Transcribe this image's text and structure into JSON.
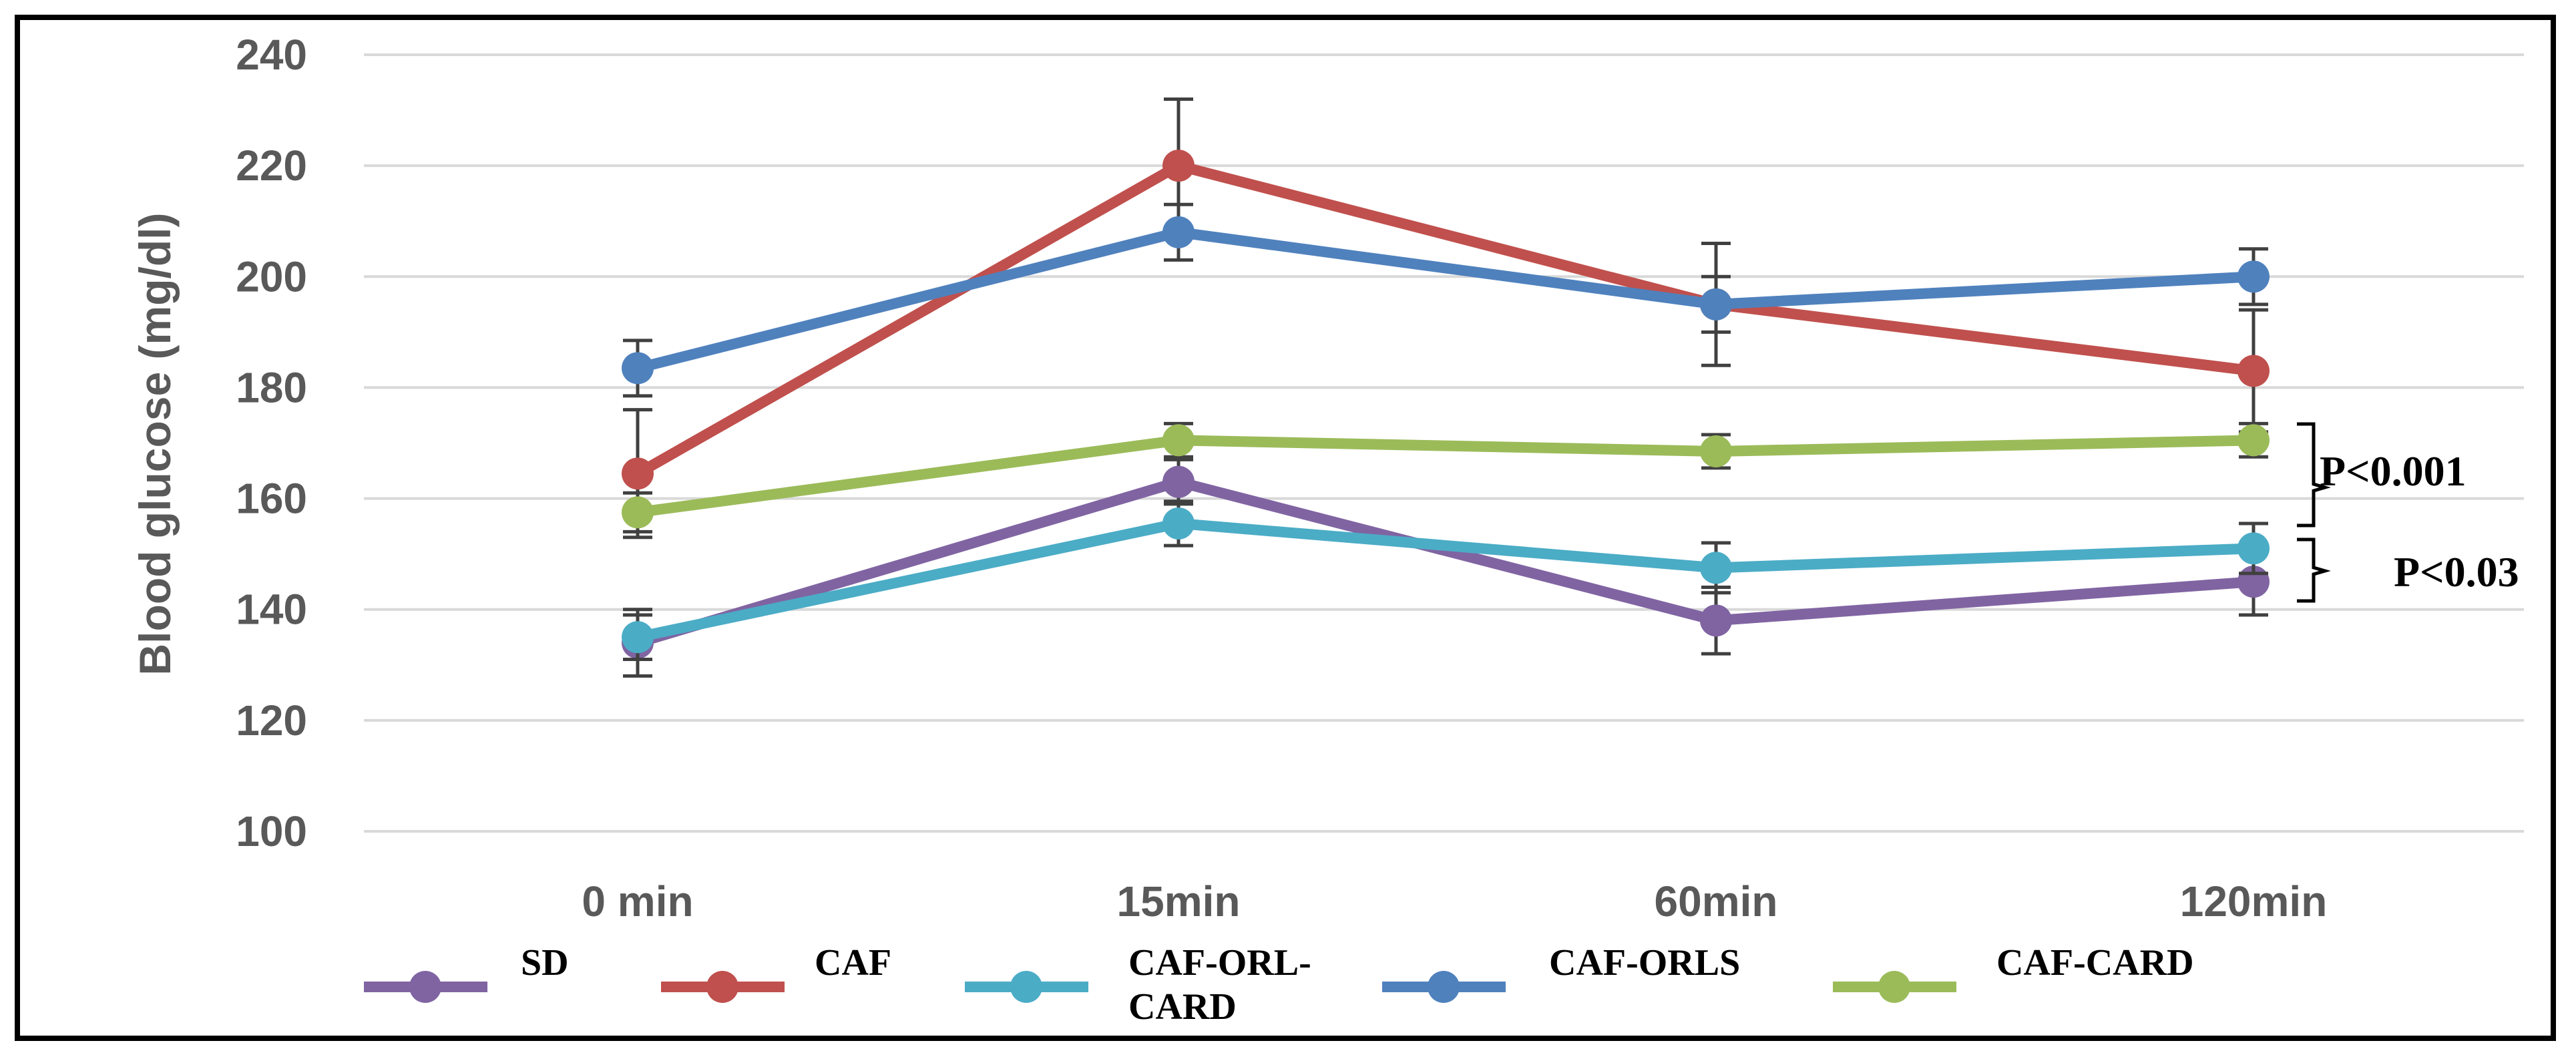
{
  "chart_data": {
    "type": "line",
    "ylabel": "Blood glucose (mg/dl)",
    "xlabel": "",
    "ylim": [
      100,
      240
    ],
    "yticks": [
      100,
      120,
      140,
      160,
      180,
      200,
      220,
      240
    ],
    "grid": true,
    "legend": "bottom",
    "categories": [
      "0 min",
      "15min",
      "60min",
      "120min"
    ],
    "series": [
      {
        "name": "SD",
        "color": "#8064A2",
        "values": [
          134,
          163,
          138,
          145
        ],
        "errors": [
          6,
          4,
          6,
          6
        ]
      },
      {
        "name": "CAF",
        "color": "#C0504D",
        "values": [
          164.5,
          220,
          195,
          183
        ],
        "errors": [
          11.5,
          12,
          11,
          11
        ]
      },
      {
        "name": "CAF-ORL-CARD",
        "color": "#4BACC6",
        "values": [
          135,
          155.5,
          147.5,
          151
        ],
        "errors": [
          4,
          4,
          4.5,
          4.5
        ]
      },
      {
        "name": "CAF-ORLS",
        "color": "#4F81BD",
        "values": [
          183.5,
          208,
          195,
          200
        ],
        "errors": [
          5,
          5,
          5,
          5
        ]
      },
      {
        "name": "CAF-CARD",
        "color": "#9BBB59",
        "values": [
          157.5,
          170.5,
          168.5,
          170.5
        ],
        "errors": [
          3.5,
          3,
          3,
          3
        ]
      }
    ],
    "annotations": [
      "P<0.001",
      "P<0.03"
    ]
  }
}
